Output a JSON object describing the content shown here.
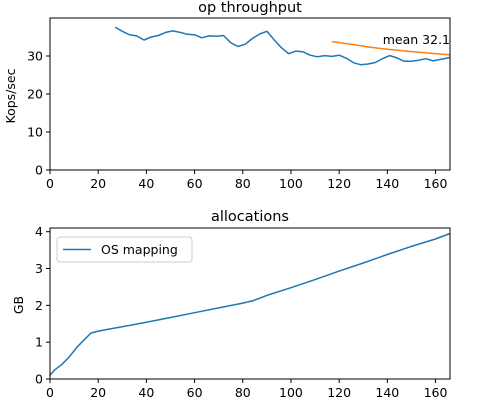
{
  "chart_data": [
    {
      "type": "line",
      "title": "op throughput",
      "xlabel": "",
      "ylabel": "Kops/sec",
      "xlim": [
        0,
        166
      ],
      "ylim": [
        0,
        40
      ],
      "xticks": [
        0,
        20,
        40,
        60,
        80,
        100,
        120,
        140,
        160
      ],
      "yticks": [
        0,
        10,
        20,
        30
      ],
      "grid": false,
      "annotation": "mean 32.1",
      "series": [
        {
          "color": "#1f77b4",
          "x": [
            27,
            30,
            33,
            36,
            39,
            42,
            45,
            48,
            51,
            54,
            57,
            60,
            63,
            66,
            69,
            72,
            75,
            78,
            81,
            84,
            87,
            90,
            93,
            96,
            99,
            102,
            105,
            108,
            111,
            114,
            117,
            120,
            123,
            126,
            129,
            132,
            135,
            138,
            141,
            144,
            147,
            150,
            153,
            156,
            159,
            162,
            166
          ],
          "y": [
            37.6,
            36.5,
            35.6,
            35.3,
            34.2,
            35.0,
            35.4,
            36.2,
            36.6,
            36.2,
            35.7,
            35.6,
            34.8,
            35.3,
            35.2,
            35.4,
            33.5,
            32.5,
            33.1,
            34.6,
            35.8,
            36.5,
            34.3,
            32.2,
            30.6,
            31.3,
            31.1,
            30.2,
            29.8,
            30.1,
            29.9,
            30.2,
            29.4,
            28.2,
            27.7,
            27.9,
            28.3,
            29.3,
            30.1,
            29.5,
            28.6,
            28.6,
            28.9,
            29.3,
            28.7,
            29.1,
            29.6
          ]
        },
        {
          "color": "#ff7f0e",
          "x": [
            117,
            125,
            133,
            141,
            149,
            157,
            166
          ],
          "y": [
            33.8,
            33.1,
            32.3,
            31.7,
            31.2,
            30.8,
            30.3
          ]
        }
      ]
    },
    {
      "type": "line",
      "title": "allocations",
      "xlabel": "",
      "ylabel": "GB",
      "xlim": [
        0,
        166
      ],
      "ylim": [
        0,
        4.1
      ],
      "xticks": [
        0,
        20,
        40,
        60,
        80,
        100,
        120,
        140,
        160
      ],
      "yticks": [
        0,
        1,
        2,
        3,
        4
      ],
      "grid": false,
      "legend_position": "upper left",
      "series": [
        {
          "name": "OS mapping",
          "color": "#1f77b4",
          "x": [
            0,
            2,
            5,
            8,
            11,
            14,
            17,
            20,
            25,
            30,
            35,
            40,
            50,
            60,
            70,
            80,
            84,
            90,
            100,
            110,
            120,
            130,
            140,
            150,
            160,
            166
          ],
          "y": [
            0.1,
            0.25,
            0.4,
            0.6,
            0.85,
            1.05,
            1.25,
            1.3,
            1.36,
            1.42,
            1.48,
            1.54,
            1.67,
            1.8,
            1.93,
            2.06,
            2.12,
            2.27,
            2.48,
            2.7,
            2.93,
            3.15,
            3.38,
            3.6,
            3.8,
            3.95
          ]
        }
      ]
    }
  ]
}
